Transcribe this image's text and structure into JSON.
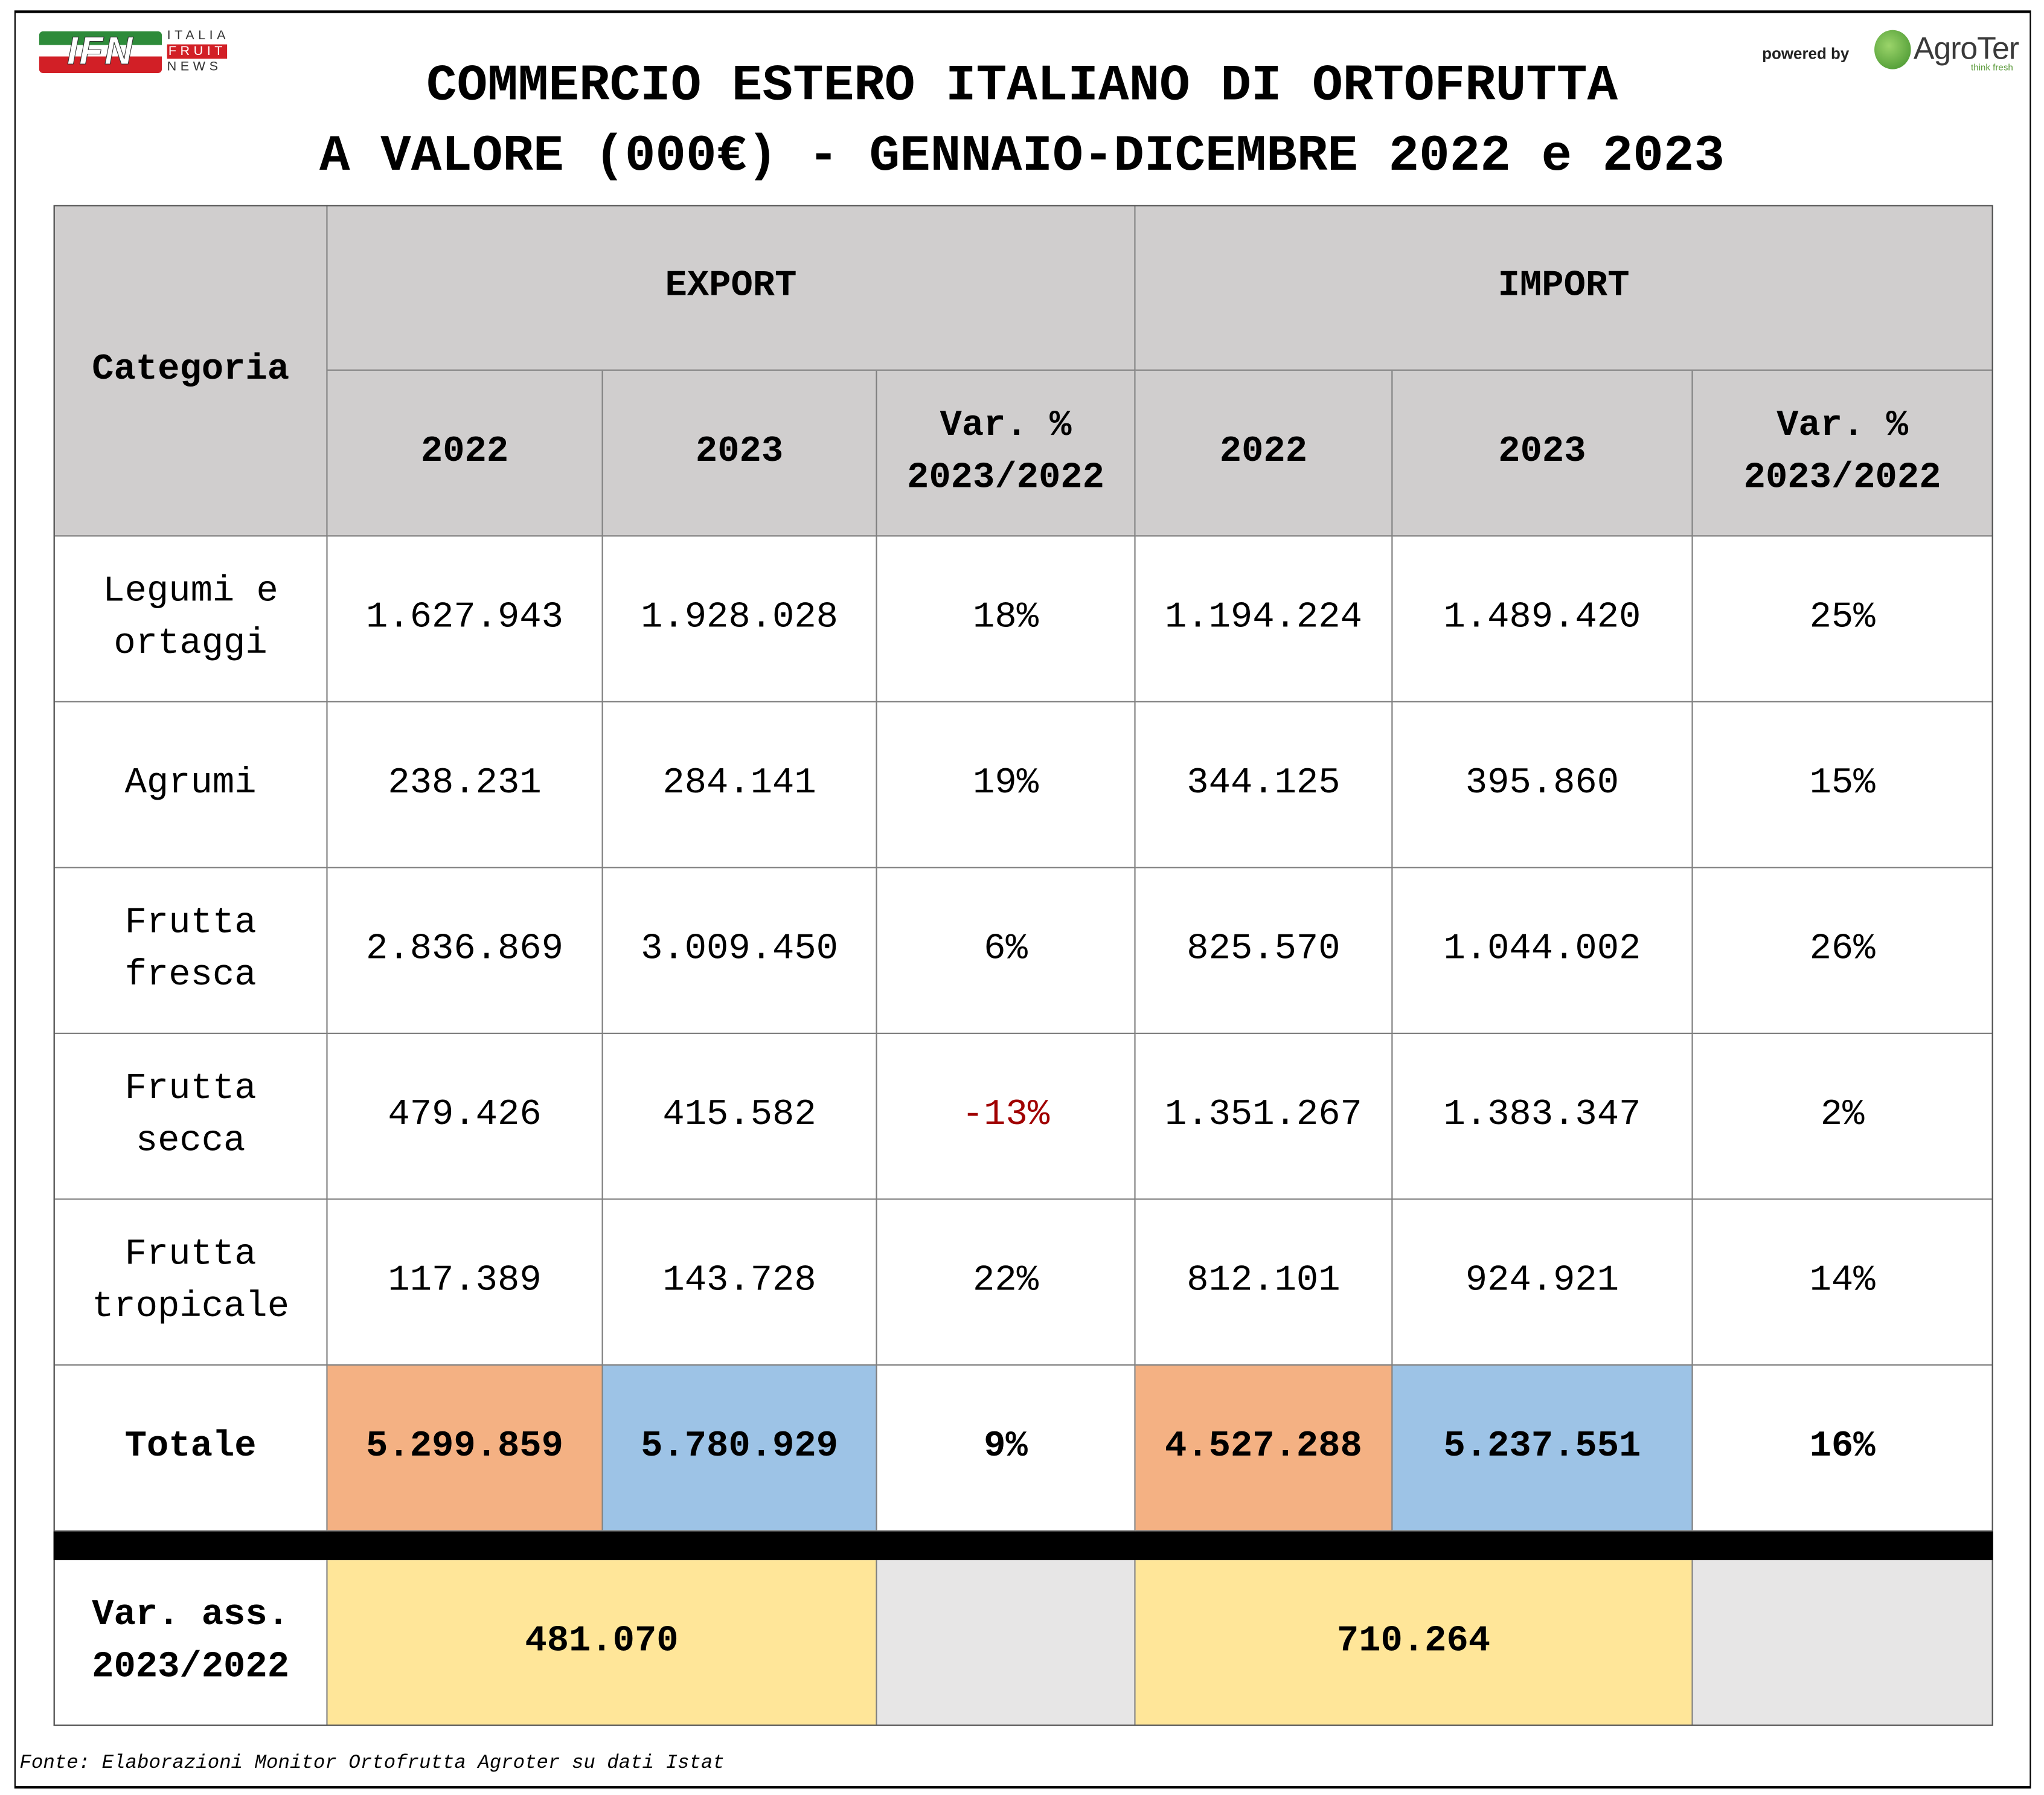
{
  "logos": {
    "left": {
      "mark": "IFN",
      "lines": [
        "ITALIA",
        "FRUIT",
        "NEWS"
      ],
      "colors": [
        "#2e8b3a",
        "#ffffff",
        "#d21f26"
      ]
    },
    "right": {
      "powered_by": "powered by",
      "brand": "AgroTer",
      "tagline": "think fresh",
      "color": "#3f8f2a"
    }
  },
  "title": {
    "line1": "COMMERCIO ESTERO ITALIANO DI ORTOFRUTTA",
    "line2": "A VALORE (000€) - GENNAIO-DICEMBRE 2022 e 2023"
  },
  "table": {
    "header": {
      "category": "Categoria",
      "export": "EXPORT",
      "import": "IMPORT",
      "y1": "2022",
      "y2": "2023",
      "var": "Var. %\n2023/2022"
    },
    "rows": [
      {
        "cat": "Legumi e\nortaggi",
        "e22": "1.627.943",
        "e23": "1.928.028",
        "ev": "18%",
        "i22": "1.194.224",
        "i23": "1.489.420",
        "iv": "25%"
      },
      {
        "cat": "Agrumi",
        "e22": "238.231",
        "e23": "284.141",
        "ev": "19%",
        "i22": "344.125",
        "i23": "395.860",
        "iv": "15%"
      },
      {
        "cat": "Frutta\nfresca",
        "e22": "2.836.869",
        "e23": "3.009.450",
        "ev": "6%",
        "i22": "825.570",
        "i23": "1.044.002",
        "iv": "26%"
      },
      {
        "cat": "Frutta\nsecca",
        "e22": "479.426",
        "e23": "415.582",
        "ev": "-13%",
        "i22": "1.351.267",
        "i23": "1.383.347",
        "iv": "2%"
      },
      {
        "cat": "Frutta\ntropicale",
        "e22": "117.389",
        "e23": "143.728",
        "ev": "22%",
        "i22": "812.101",
        "i23": "924.921",
        "iv": "14%"
      }
    ],
    "total": {
      "cat": "Totale",
      "e22": "5.299.859",
      "e23": "5.780.929",
      "ev": "9%",
      "i22": "4.527.288",
      "i23": "5.237.551",
      "iv": "16%"
    },
    "abs": {
      "cat": "Var. ass.\n2023/2022",
      "export": "481.070",
      "import": "710.264"
    },
    "colors": {
      "header": "#d0cece",
      "y2022": "#f4b183",
      "y2023": "#9dc3e6",
      "abs": "#ffe699",
      "empty": "#e7e6e6",
      "negative": "#a00000"
    }
  },
  "footer": "Fonte: Elaborazioni Monitor Ortofrutta Agroter su dati Istat"
}
